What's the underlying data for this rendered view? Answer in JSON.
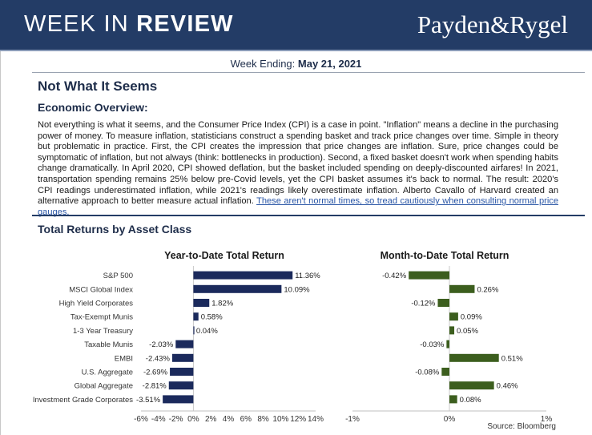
{
  "header": {
    "title_light": "WEEK IN ",
    "title_bold": "REVIEW",
    "brand": "Payden&Rygel"
  },
  "week": {
    "label": "Week Ending: ",
    "date": "May 21, 2021"
  },
  "article": {
    "title": "Not What It Seems",
    "overview_heading": "Economic Overview:",
    "body": "Not everything is what it seems, and the Consumer Price Index (CPI) is a case in point. \"Inflation\" means a decline in the purchasing power of money. To measure inflation, statisticians construct a spending basket and track price changes over time. Simple in theory but problematic in practice. First, the CPI creates the impression that price changes are inflation. Sure, price changes could be symptomatic of inflation, but not always (think: bottlenecks in production). Second, a fixed basket doesn't work when spending habits change dramatically. In April 2020, CPI showed deflation, but the basket included spending on deeply-discounted airfares! In 2021, transportation spending remains 25% below pre-Covid levels, yet the CPI basket assumes it's back to normal. The result: 2020's CPI readings underestimated inflation, while 2021's readings likely overestimate inflation. Alberto Cavallo of Harvard created an alternative approach to better measure actual inflation. ",
    "link": "These aren't normal times, so tread cautiously when consulting normal price gauges."
  },
  "returns_heading": "Total Returns by Asset Class",
  "source": "Source: Bloomberg",
  "colors": {
    "navy": "#233c66",
    "ytd_bar": "#1b2a5c",
    "mtd_bar": "#3c5e1e"
  },
  "chart_data": [
    {
      "type": "bar",
      "orientation": "horizontal",
      "title": "Year-to-Date Total Return",
      "categories": [
        "S&P 500",
        "MSCI Global Index",
        "High Yield Corporates",
        "Tax-Exempt Munis",
        "1-3 Year Treasury",
        "Taxable Munis",
        "EMBI",
        "U.S. Aggregate",
        "Global Aggregate",
        "Investment Grade Corporates"
      ],
      "values": [
        11.36,
        10.09,
        1.82,
        0.58,
        0.04,
        -2.03,
        -2.43,
        -2.69,
        -2.81,
        -3.51
      ],
      "value_labels": [
        "11.36%",
        "10.09%",
        "1.82%",
        "0.58%",
        "0.04%",
        "-2.03%",
        "-2.43%",
        "-2.69%",
        "-2.81%",
        "-3.51%"
      ],
      "xlim": [
        -6,
        14
      ],
      "ticks": [
        -6,
        -4,
        -2,
        0,
        2,
        4,
        6,
        8,
        10,
        12,
        14
      ],
      "tick_labels": [
        "-6%",
        "-4%",
        "-2%",
        "0%",
        "2%",
        "4%",
        "6%",
        "8%",
        "10%",
        "12%",
        "14%"
      ],
      "grid": false
    },
    {
      "type": "bar",
      "orientation": "horizontal",
      "title": "Month-to-Date Total Return",
      "categories": [
        "S&P 500",
        "MSCI Global Index",
        "High Yield Corporates",
        "Tax-Exempt Munis",
        "1-3 Year Treasury",
        "Taxable Munis",
        "EMBI",
        "U.S. Aggregate",
        "Global Aggregate",
        "Investment Grade Corporates"
      ],
      "values": [
        -0.42,
        0.26,
        -0.12,
        0.09,
        0.05,
        -0.03,
        0.51,
        -0.08,
        0.46,
        0.08
      ],
      "value_labels": [
        "-0.42%",
        "0.26%",
        "-0.12%",
        "0.09%",
        "0.05%",
        "-0.03%",
        "0.51%",
        "-0.08%",
        "0.46%",
        "0.08%"
      ],
      "xlim": [
        -1,
        1
      ],
      "ticks": [
        -1,
        0,
        1
      ],
      "tick_labels": [
        "-1%",
        "0%",
        "1%"
      ],
      "grid": false
    }
  ]
}
